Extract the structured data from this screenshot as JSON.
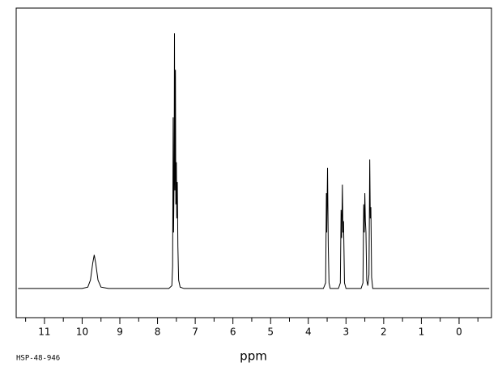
{
  "chart_data": {
    "type": "line",
    "x_label": "ppm",
    "annotation": "HSP-48-946",
    "color": "#000000",
    "x": [
      11.7,
      10.0,
      9.85,
      9.78,
      9.72,
      9.68,
      9.64,
      9.58,
      9.5,
      9.3,
      7.7,
      7.62,
      7.6,
      7.585,
      7.575,
      7.56,
      7.55,
      7.54,
      7.525,
      7.515,
      7.5,
      7.49,
      7.475,
      7.46,
      7.44,
      7.4,
      7.3,
      3.6,
      3.54,
      3.52,
      3.51,
      3.49,
      3.47,
      3.45,
      3.42,
      3.2,
      3.15,
      3.13,
      3.115,
      3.095,
      3.08,
      3.065,
      3.04,
      3.0,
      2.6,
      2.55,
      2.53,
      2.515,
      2.5,
      2.485,
      2.47,
      2.45,
      2.42,
      2.39,
      2.37,
      2.355,
      2.34,
      2.32,
      2.29,
      -0.8
    ],
    "values": [
      0,
      0,
      0.5,
      3,
      9,
      12,
      9,
      3,
      0.5,
      0,
      0,
      1,
      8,
      61,
      20,
      40,
      91,
      35,
      78,
      30,
      45,
      25,
      38,
      15,
      3,
      0.5,
      0,
      0,
      2,
      34,
      20,
      43,
      15,
      2,
      0,
      0,
      2,
      28,
      18,
      37,
      20,
      24,
      2,
      0,
      0,
      2,
      30,
      20,
      34,
      24,
      20,
      3,
      1,
      5,
      46,
      25,
      29,
      4,
      0,
      0
    ],
    "xlim": [
      11.75,
      -0.86
    ],
    "ylim": [
      -10.4,
      100
    ],
    "xticks": [
      11,
      10,
      9,
      8,
      7,
      6,
      5,
      4,
      3,
      2,
      1,
      0
    ],
    "xminor_ticks": [
      11.5,
      10.5,
      9.5,
      8.5,
      7.5,
      6.5,
      5.5,
      4.5,
      3.5,
      2.5,
      1.5,
      0.5,
      -0.5
    ]
  }
}
